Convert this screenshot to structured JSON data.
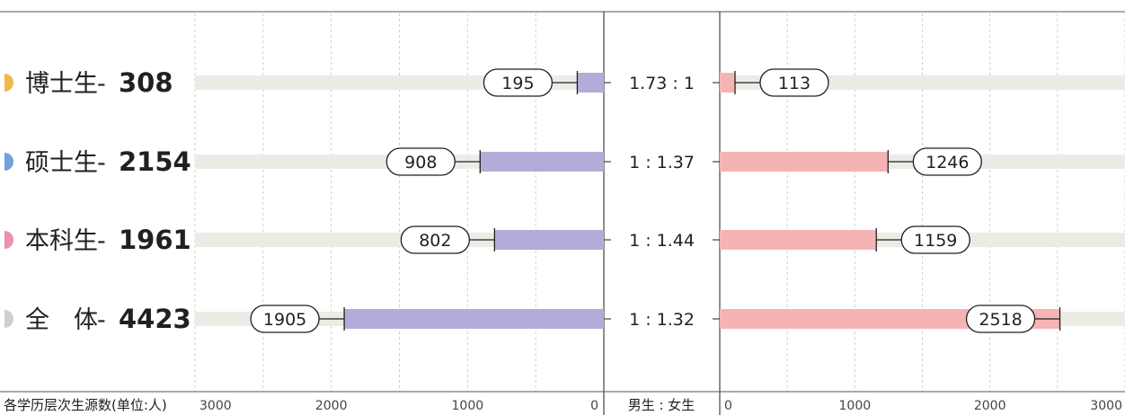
{
  "chart_data": {
    "type": "bar",
    "layout": "back-to-back horizontal bar",
    "axis_title": "各学历层次生源数(单位:人)",
    "ratio_header": "男生 : 女生",
    "xlim": [
      0,
      3000
    ],
    "left_ticks": [
      "3000",
      "2000",
      "1000",
      "0"
    ],
    "right_ticks": [
      "0",
      "1000",
      "2000",
      "3000"
    ],
    "categories": [
      {
        "name": "博士生",
        "dash": "-",
        "total": "308",
        "male": 195,
        "female": 113,
        "ratio": "1.73 : 1",
        "marker_color": "#f2b84b"
      },
      {
        "name": "硕士生",
        "dash": "-",
        "total": "2154",
        "male": 908,
        "female": 1246,
        "ratio": "1 : 1.37",
        "marker_color": "#6fa3dc"
      },
      {
        "name": "本科生",
        "dash": "-",
        "total": "1961",
        "male": 802,
        "female": 1159,
        "ratio": "1 : 1.44",
        "marker_color": "#ee8fae"
      },
      {
        "name": "全　体",
        "dash": "-",
        "total": "4423",
        "male": 1905,
        "female": 2518,
        "ratio": "1 : 1.32",
        "marker_color": "#cfcfcf"
      }
    ],
    "colors": {
      "male": "#b3acd8",
      "female": "#f5b4b4",
      "track": "#ecebe6"
    }
  }
}
